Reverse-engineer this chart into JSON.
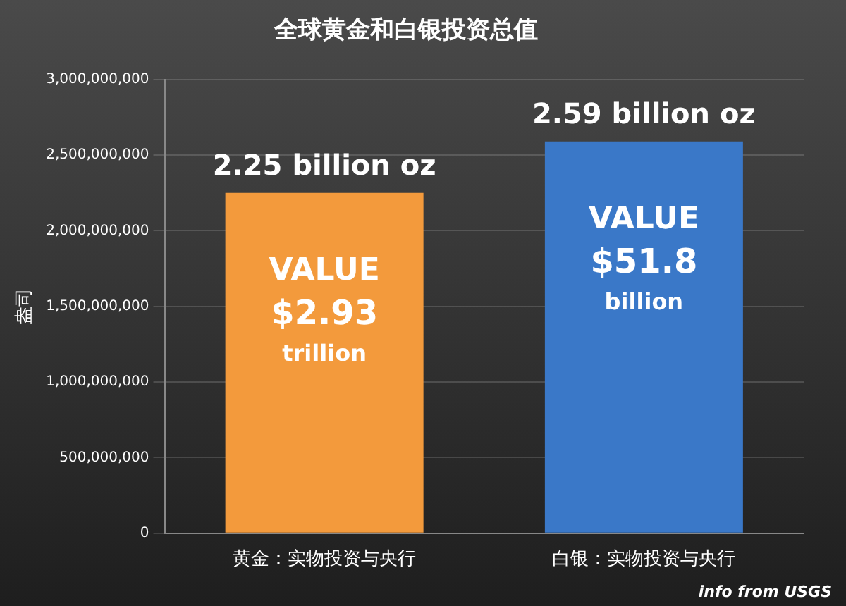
{
  "chart_data": {
    "type": "bar",
    "title": "全球黄金和白银投资总值",
    "ylabel": "盎司",
    "categories": [
      "黄金：实物投资与央行",
      "白银：实物投资与央行"
    ],
    "values": [
      2250000000,
      2590000000
    ],
    "colors": [
      "#f39a3c",
      "#3a78c8"
    ],
    "value_labels": [
      "2.25 billion oz",
      "2.59 billion oz"
    ],
    "ylim": [
      0,
      3000000000
    ],
    "yticks": [
      0,
      {
        "value": 500000000,
        "label": "500,000,000"
      },
      {
        "value": 1000000000,
        "label": "1,000,000,000"
      },
      {
        "value": 1500000000,
        "label": "1,500,000,000"
      },
      {
        "value": 2000000000,
        "label": "2,000,000,000"
      },
      {
        "value": 2500000000,
        "label": "2,500,000,000"
      },
      {
        "value": 3000000000,
        "label": "3,000,000,000"
      }
    ],
    "grid": "y",
    "annotations": [
      "VALUE $2.93 trillion",
      "VALUE $51.8 billion",
      "info from USGS"
    ]
  }
}
